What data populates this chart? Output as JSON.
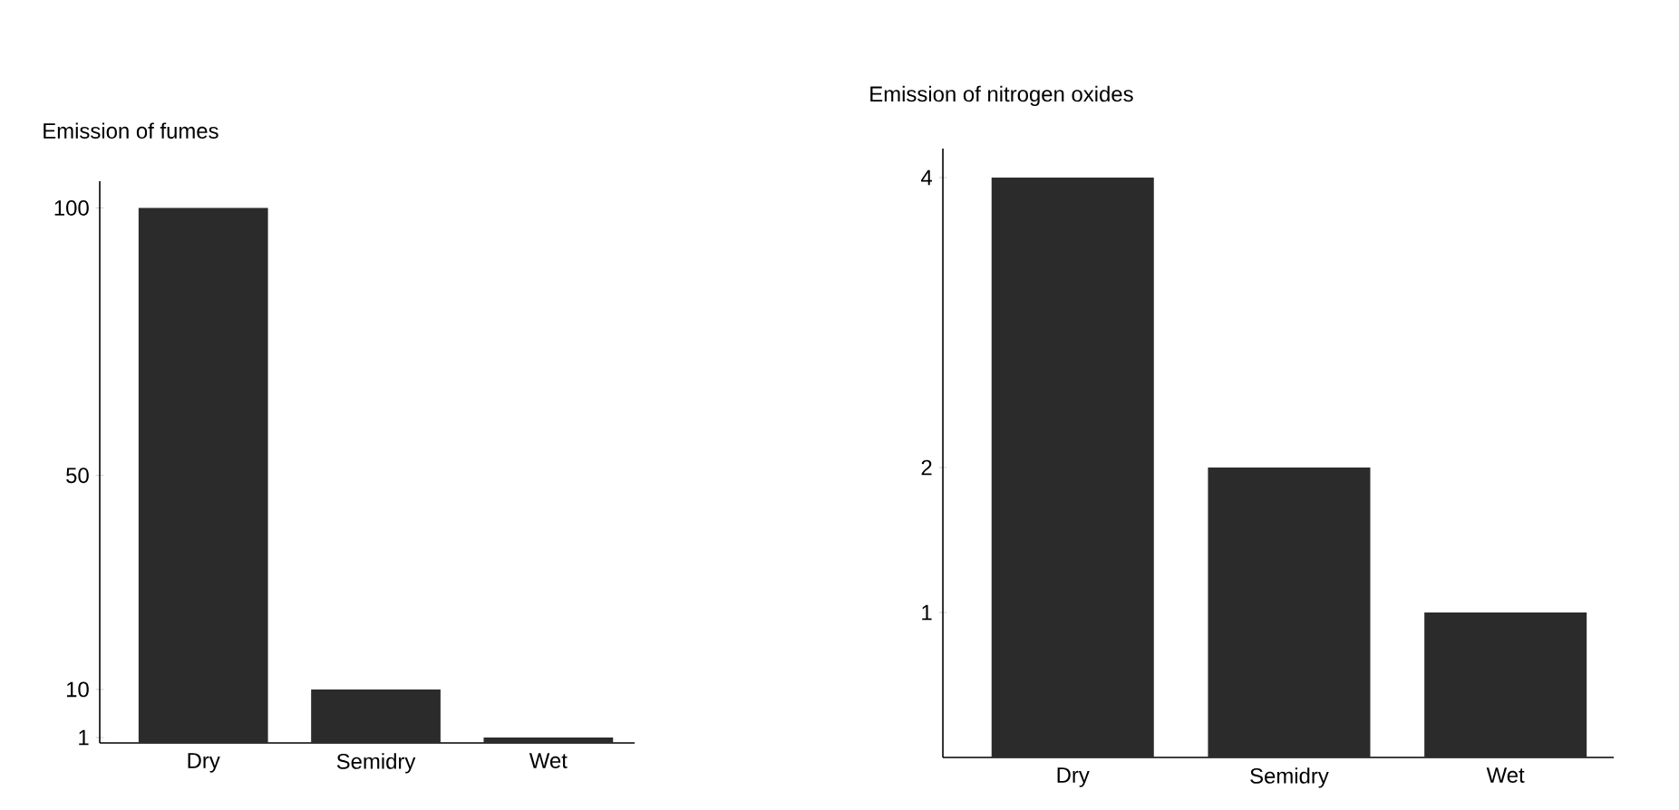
{
  "chart_data": [
    {
      "type": "bar",
      "title": "Emission of fumes",
      "categories": [
        "Dry",
        "Semidry",
        "Wet"
      ],
      "values": [
        100,
        10,
        1
      ],
      "color": "#2b2b2b",
      "ylim": [
        0,
        105
      ],
      "yticks": [
        1,
        10,
        50,
        100
      ]
    },
    {
      "type": "bar",
      "title": "Emission of nitrogen oxides",
      "categories": [
        "Dry",
        "Semidry",
        "Wet"
      ],
      "values": [
        4,
        2,
        1
      ],
      "color": "#2b2b2b",
      "ylim": [
        0,
        4.2
      ],
      "yticks": [
        1,
        2,
        4
      ]
    }
  ]
}
